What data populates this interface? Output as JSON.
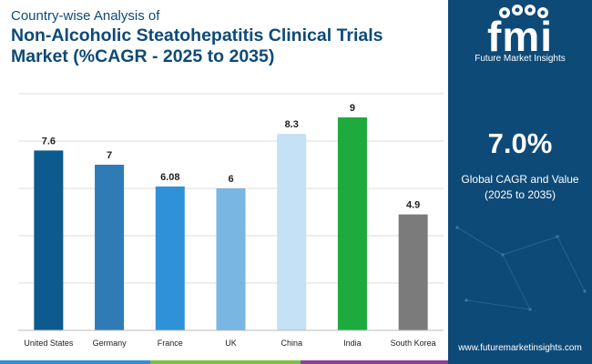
{
  "header": {
    "subtitle": "Country-wise Analysis of",
    "title": "Non-Alcoholic Steatohepatitis Clinical Trials Market (%CAGR - 2025 to 2035)"
  },
  "brand": {
    "logo_text": "fmi",
    "name": "Future Market Insights",
    "website": "www.futuremarketinsights.com",
    "color": "#0d4a78"
  },
  "highlight": {
    "value": "7.0%",
    "label": "Global CAGR and Value (2025 to 2035)"
  },
  "chart_data": {
    "type": "bar",
    "title": "Non-Alcoholic Steatohepatitis Clinical Trials Market (%CAGR - 2025 to 2035)",
    "xlabel": "",
    "ylabel": "",
    "ylim": [
      0,
      10
    ],
    "grid": true,
    "categories": [
      "United States",
      "Germany",
      "France",
      "UK",
      "China",
      "India",
      "South Korea"
    ],
    "values": [
      7.6,
      7,
      6.08,
      6,
      8.3,
      9,
      4.9
    ],
    "labels": [
      "7.6",
      "7",
      "6.08",
      "6",
      "8.3",
      "9",
      "4.9"
    ],
    "colors": [
      "#0d5a8e",
      "#2f7bb5",
      "#2f91d8",
      "#7ab6e2",
      "#c4e1f5",
      "#1eaa3c",
      "#7b7b7b"
    ]
  },
  "footer_strip_colors": [
    "#2f8fd8",
    "#7ac143",
    "#8e3f9a",
    "#0d4a78"
  ]
}
